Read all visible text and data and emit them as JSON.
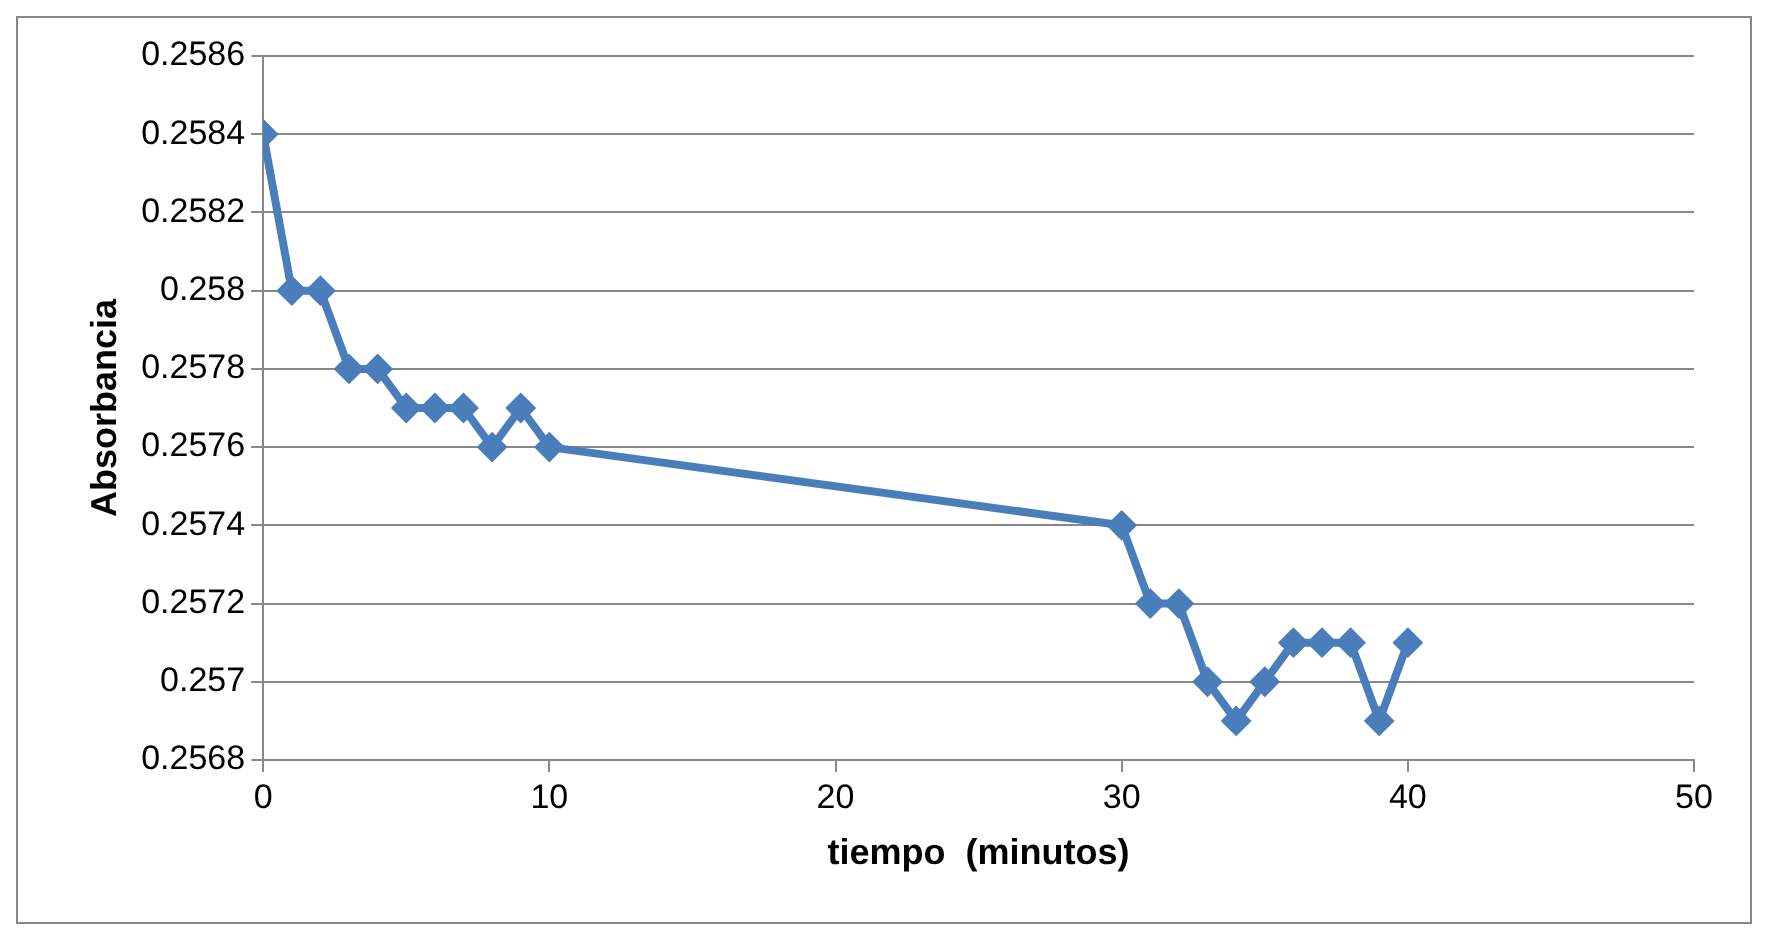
{
  "chart_data": {
    "type": "line",
    "xlabel": "tiempo  (minutos)",
    "ylabel": "Absorbancia",
    "x": [
      0,
      1,
      2,
      3,
      4,
      5,
      6,
      7,
      8,
      9,
      10,
      30,
      31,
      32,
      33,
      34,
      35,
      36,
      37,
      38,
      39,
      40
    ],
    "series": [
      {
        "color": "#4a7ebb",
        "values": [
          0.2584,
          0.258,
          0.258,
          0.2578,
          0.2578,
          0.2577,
          0.2577,
          0.2577,
          0.2576,
          0.2577,
          0.2576,
          0.2574,
          0.2572,
          0.2572,
          0.257,
          0.2569,
          0.257,
          0.2571,
          0.2571,
          0.2571,
          0.2569,
          0.2571
        ]
      }
    ],
    "xlim": [
      0,
      50
    ],
    "xticks": [
      0,
      10,
      20,
      30,
      40,
      50
    ],
    "ylim": [
      0.2568,
      0.2586
    ],
    "yticks": [
      0.2568,
      0.257,
      0.2572,
      0.2574,
      0.2576,
      0.2578,
      0.258,
      0.2582,
      0.2584,
      0.2586
    ],
    "grid": "y",
    "legend": false,
    "marker": "diamond",
    "line_style": "solid"
  }
}
